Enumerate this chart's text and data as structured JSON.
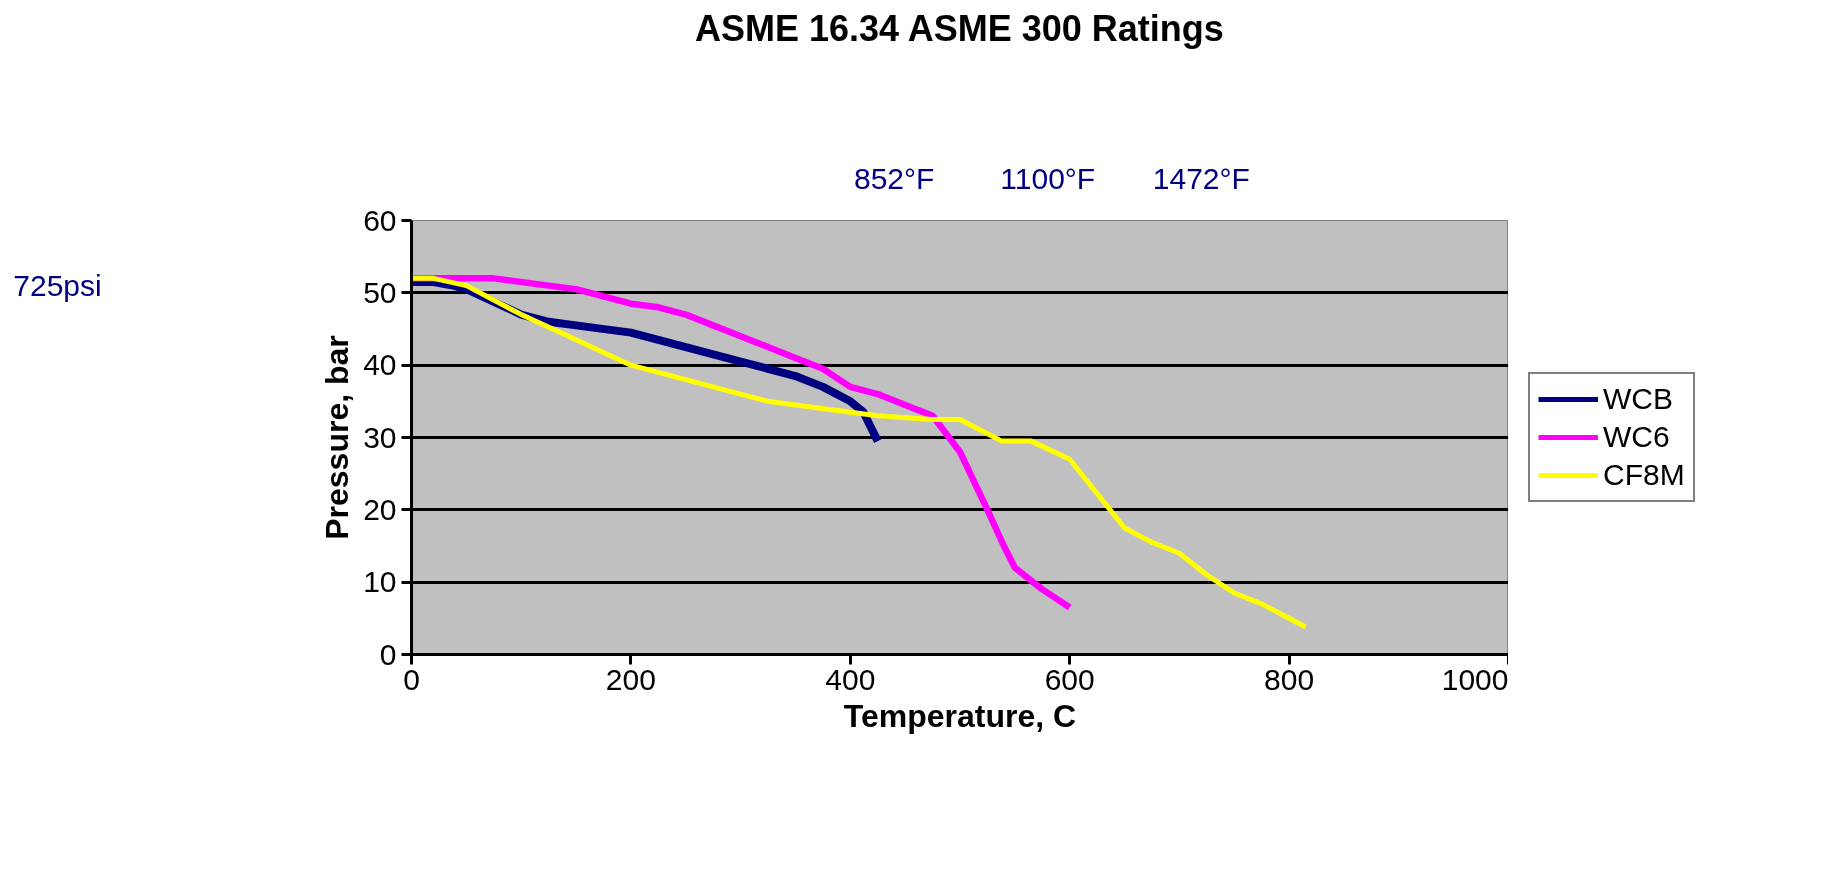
{
  "chart_data": {
    "type": "line",
    "title": "ASME 16.34 ASME 300 Ratings",
    "xlabel": "Temperature, C",
    "ylabel": "Pressure, bar",
    "xlim": [
      0,
      1000
    ],
    "xticks": [
      0,
      200,
      400,
      600,
      800,
      1000
    ],
    "ylim": [
      0,
      60
    ],
    "yticks": [
      0,
      10,
      20,
      30,
      40,
      50,
      60
    ],
    "grid": "y",
    "legend": "right",
    "marker": "none",
    "line_style": "solid",
    "annotations": [
      "852°F",
      "1100°F",
      "1472°F",
      "725psi"
    ],
    "series": [
      {
        "name": "WCB",
        "color": "#000080",
        "x": [
          0,
          20,
          38,
          50,
          100,
          125,
          150,
          200,
          250,
          300,
          325,
          350,
          375,
          400,
          412,
          425
        ],
        "values": [
          51.5,
          51.5,
          51,
          50.5,
          47,
          46,
          45.5,
          44.5,
          42.5,
          40.5,
          39.5,
          38.5,
          37,
          35,
          33.5,
          29.5
        ]
      },
      {
        "name": "WC6",
        "color": "#ff00ff",
        "x": [
          0,
          75,
          125,
          150,
          200,
          225,
          250,
          275,
          300,
          325,
          350,
          375,
          400,
          425,
          450,
          475,
          500,
          525,
          540,
          550,
          575,
          600
        ],
        "values": [
          52,
          52,
          51,
          50.5,
          48.5,
          48,
          47,
          45.5,
          44,
          42.5,
          41,
          39.5,
          37,
          36,
          34.5,
          33,
          28,
          20,
          15,
          12,
          9,
          6.5
        ]
      },
      {
        "name": "CF8M",
        "color": "#ffff00",
        "x": [
          0,
          20,
          50,
          100,
          150,
          200,
          250,
          300,
          325,
          350,
          400,
          425,
          475,
          500,
          538,
          565,
          600,
          650,
          675,
          700,
          725,
          750,
          775,
          800,
          815
        ],
        "values": [
          52,
          52,
          51,
          47,
          43.5,
          40,
          38,
          36,
          35,
          34.5,
          33.5,
          33,
          32.5,
          32.5,
          29.5,
          29.5,
          27,
          17.5,
          15.5,
          14,
          11,
          8.5,
          7,
          5,
          3.8
        ]
      }
    ]
  }
}
